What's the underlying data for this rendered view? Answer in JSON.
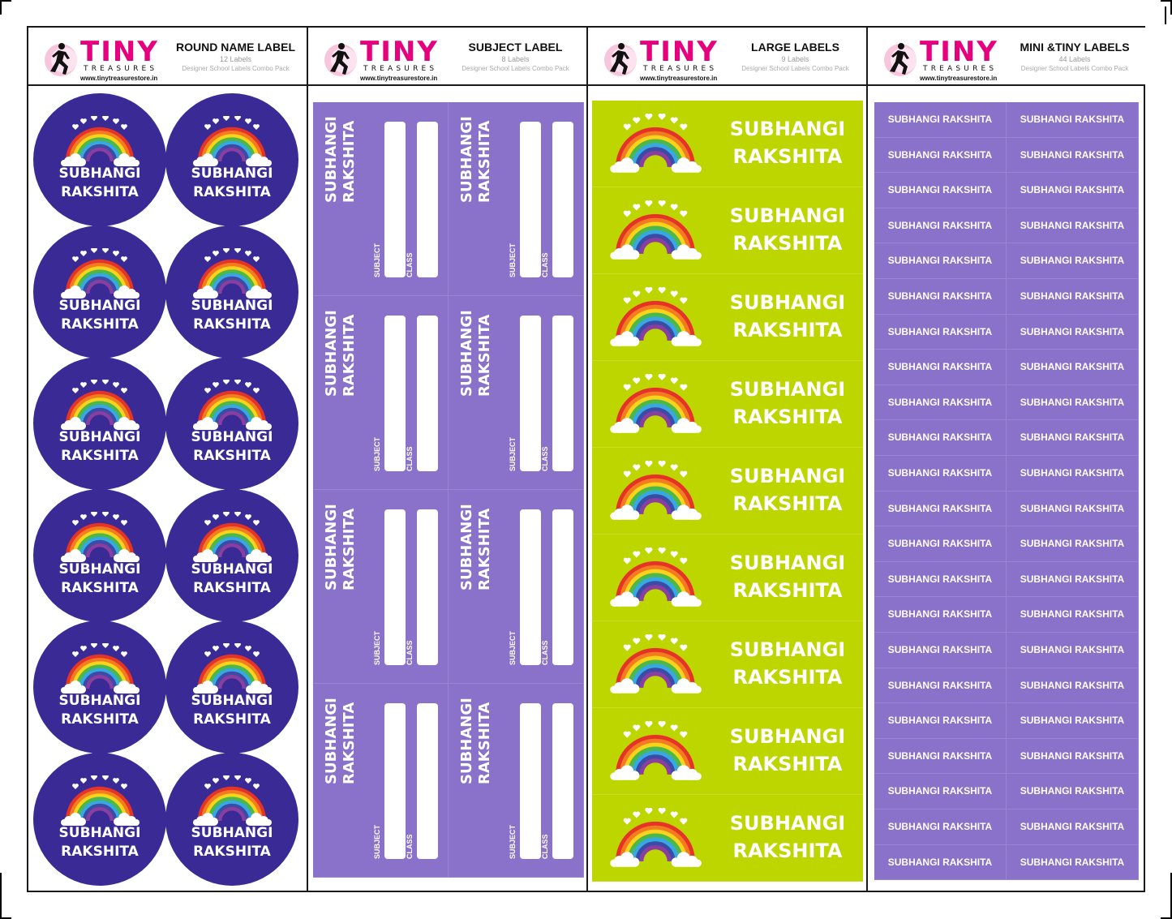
{
  "brand": {
    "name": "TINY",
    "tagline": "TREASURES",
    "url": "www.tinytreasurestore.in",
    "pink": "#e6007e"
  },
  "child_name": {
    "line1": "SUBHANGI",
    "line2": "RAKSHITA",
    "full": "SUBHANGI RAKSHITA"
  },
  "panels": [
    {
      "title": "ROUND NAME LABEL",
      "count": "12 Labels",
      "subtitle": "",
      "color": "#3a2a96"
    },
    {
      "title": "SUBJECT LABEL",
      "count": "8 Labels",
      "subtitle": "Designer School Labels Combo Pack",
      "color": "#8a71c9"
    },
    {
      "title": "LARGE LABELS",
      "count": "9 Labels",
      "subtitle": "Designer School Labels Combo Pack",
      "color": "#bed600"
    },
    {
      "title": "MINI &TINY LABELS",
      "count": "44 Labels",
      "subtitle": "Designer School Labels Combo Pack",
      "color": "#8a71c9"
    }
  ],
  "round_subtitle": "Designer School Labels Combo Pack",
  "subject_fields": {
    "subject": "SUBJECT",
    "class": "CLASS"
  },
  "counts": {
    "round": 12,
    "subject": 8,
    "large": 9,
    "mini": 44
  },
  "icons": [
    "runner-logo-icon",
    "rainbow-icon",
    "heart-icon",
    "cloud-icon"
  ]
}
